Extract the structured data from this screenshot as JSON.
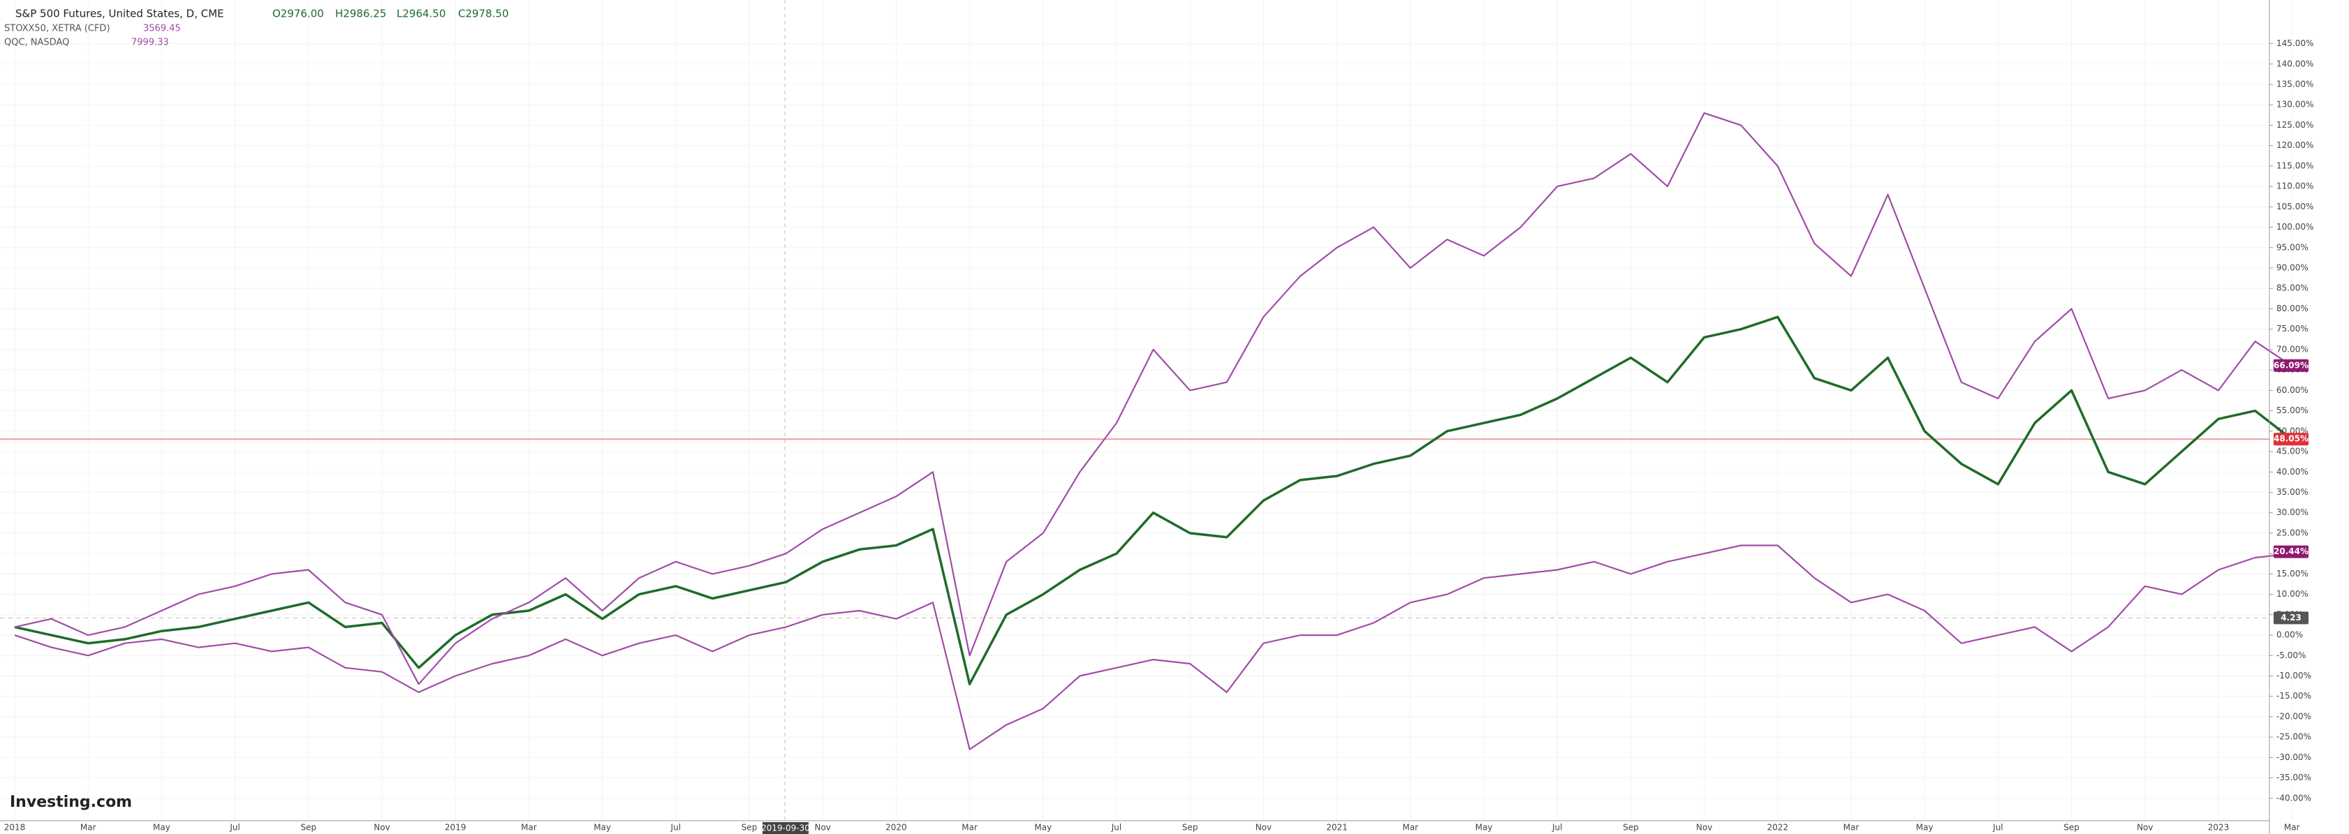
{
  "chart_data": {
    "type": "line",
    "header": {
      "ohlc": [
        "O2976.00",
        "H2986.25",
        "L2964.50",
        "C2978.50"
      ],
      "quotes": [
        "3569.45",
        "7999.33"
      ]
    },
    "crosshair_date": "2019-09-30",
    "watermark": "Investing.com",
    "categories": [
      "2018",
      null,
      "Mar",
      null,
      "May",
      null,
      "Jul",
      null,
      "Sep",
      null,
      "Nov",
      null,
      "2019",
      null,
      "Mar",
      null,
      "May",
      null,
      "Jul",
      null,
      "Sep",
      null,
      "Nov",
      null,
      "2020",
      null,
      "Mar",
      null,
      "May",
      null,
      "Jul",
      null,
      "Sep",
      null,
      "Nov",
      null,
      "2021",
      null,
      "Mar",
      null,
      "May",
      null,
      "Jul",
      null,
      "Sep",
      null,
      "Nov",
      null,
      "2022",
      null,
      "Mar",
      null,
      "May",
      null,
      "Jul",
      null,
      "Sep",
      null,
      "Nov",
      null,
      "2023",
      null,
      "Mar"
    ],
    "series": [
      {
        "name": "S&P 500 Futures, United States, D, CME",
        "color": "#1f6b2a",
        "values": [
          2,
          0,
          -2,
          -1,
          1,
          2,
          4,
          6,
          8,
          2,
          3,
          -8,
          0,
          5,
          6,
          10,
          4,
          10,
          12,
          9,
          11,
          13,
          18,
          21,
          22,
          26,
          -12,
          5,
          10,
          16,
          20,
          30,
          25,
          24,
          33,
          38,
          39,
          42,
          44,
          50,
          52,
          54,
          58,
          63,
          68,
          62,
          73,
          75,
          78,
          63,
          60,
          68,
          50,
          42,
          37,
          52,
          60,
          40,
          37,
          45,
          53,
          55,
          48
        ]
      },
      {
        "name": "STOXX50, XETRA (CFD)",
        "color": "#a04da6",
        "values": [
          0,
          -3,
          -5,
          -2,
          -1,
          -3,
          -2,
          -4,
          -3,
          -8,
          -9,
          -14,
          -10,
          -7,
          -5,
          -1,
          -5,
          -2,
          0,
          -4,
          0,
          2,
          5,
          6,
          4,
          8,
          -28,
          -22,
          -18,
          -10,
          -8,
          -6,
          -7,
          -14,
          -2,
          0,
          0,
          3,
          8,
          10,
          14,
          15,
          16,
          18,
          15,
          18,
          20,
          22,
          22,
          14,
          8,
          10,
          6,
          -2,
          0,
          2,
          -4,
          2,
          12,
          10,
          16,
          19,
          20
        ]
      },
      {
        "name": "QQC, NASDAQ",
        "color": "#a04da6",
        "values": [
          2,
          4,
          0,
          2,
          6,
          10,
          12,
          15,
          16,
          8,
          5,
          -12,
          -2,
          4,
          8,
          14,
          6,
          14,
          18,
          15,
          17,
          20,
          26,
          30,
          34,
          40,
          -5,
          18,
          25,
          40,
          52,
          70,
          60,
          62,
          78,
          88,
          95,
          100,
          90,
          97,
          93,
          100,
          110,
          112,
          118,
          110,
          128,
          125,
          115,
          96,
          88,
          108,
          85,
          62,
          58,
          72,
          80,
          58,
          60,
          65,
          60,
          72,
          66
        ]
      }
    ],
    "price_labels": [
      {
        "value": 66.09,
        "label": "66.09%",
        "color": "#8e1a6f"
      },
      {
        "value": 48.05,
        "label": "48.05%",
        "color": "#e0303a"
      },
      {
        "value": 20.44,
        "label": "20.44%",
        "color": "#8e1a6f"
      },
      {
        "value": 4.23,
        "label": "4.23",
        "color": "#555555"
      }
    ],
    "ylim": [
      -45.5,
      155.7
    ],
    "yticks": [
      {
        "value": -40,
        "label": "-40.00%"
      },
      {
        "value": -35,
        "label": "-35.00%"
      },
      {
        "value": -30,
        "label": "-30.00%"
      },
      {
        "value": -25,
        "label": "-25.00%"
      },
      {
        "value": -20,
        "label": "-20.00%"
      },
      {
        "value": -15,
        "label": "-15.00%"
      },
      {
        "value": -10,
        "label": "-10.00%"
      },
      {
        "value": -5,
        "label": "-5.00%"
      },
      {
        "value": 0,
        "label": "0.00%"
      },
      {
        "value": 5,
        "label": "5.00%"
      },
      {
        "value": 10,
        "label": "10.00%"
      },
      {
        "value": 15,
        "label": "15.00%"
      },
      {
        "value": 20,
        "label": "20.00%"
      },
      {
        "value": 25,
        "label": "25.00%"
      },
      {
        "value": 30,
        "label": "30.00%"
      },
      {
        "value": 35,
        "label": "35.00%"
      },
      {
        "value": 40,
        "label": "40.00%"
      },
      {
        "value": 45,
        "label": "45.00%"
      },
      {
        "value": 50,
        "label": "50.00%"
      },
      {
        "value": 55,
        "label": "55.00%"
      },
      {
        "value": 60,
        "label": "60.00%"
      },
      {
        "value": 65,
        "label": "65.00%"
      },
      {
        "value": 70,
        "label": "70.00%"
      },
      {
        "value": 75,
        "label": "75.00%"
      },
      {
        "value": 80,
        "label": "80.00%"
      },
      {
        "value": 85,
        "label": "85.00%"
      },
      {
        "value": 90,
        "label": "90.00%"
      },
      {
        "value": 95,
        "label": "95.00%"
      },
      {
        "value": 100,
        "label": "100.00%"
      },
      {
        "value": 105,
        "label": "105.00%"
      },
      {
        "value": 110,
        "label": "110.00%"
      },
      {
        "value": 115,
        "label": "115.00%"
      },
      {
        "value": 120,
        "label": "120.00%"
      },
      {
        "value": 125,
        "label": "125.00%"
      },
      {
        "value": 130,
        "label": "130.00%"
      },
      {
        "value": 135,
        "label": "135.00%"
      },
      {
        "value": 140,
        "label": "140.00%"
      },
      {
        "value": 145,
        "label": "145.00%"
      }
    ],
    "grid": true
  }
}
